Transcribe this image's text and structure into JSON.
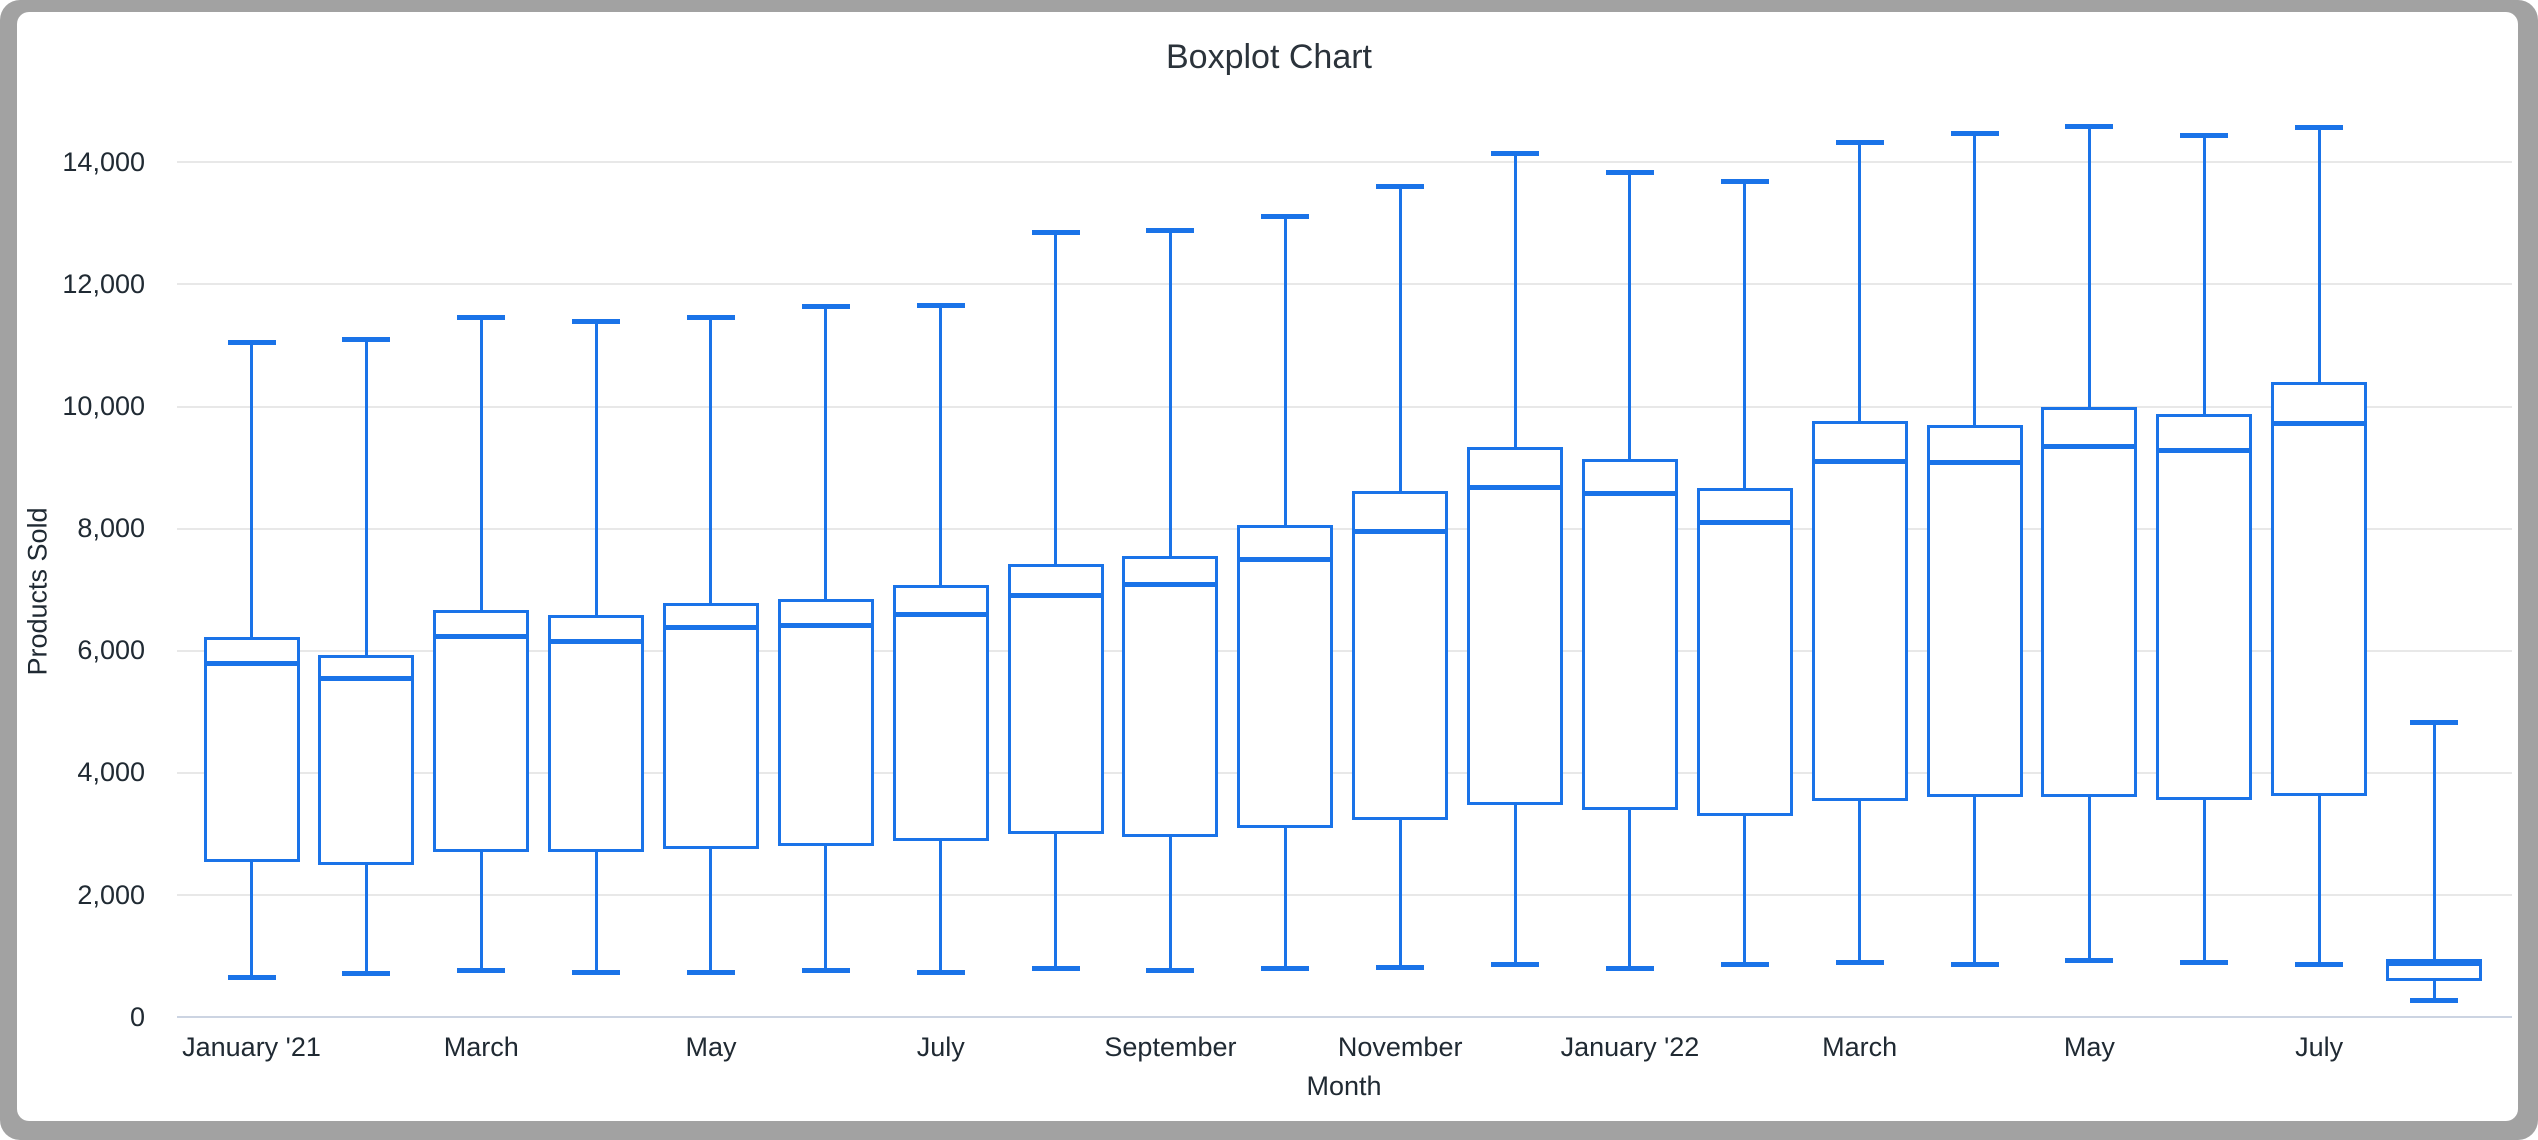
{
  "window": {
    "frame_color": "#a2a2a2",
    "background_color": "#ffffff"
  },
  "colors": {
    "series_blue": "#1a73e8",
    "gridline": "#e8e8e8",
    "baseline": "#ccd4e2",
    "tick_text": "#202a33",
    "title_text": "#2b333b"
  },
  "chart_data": {
    "type": "boxplot",
    "title": "Boxplot Chart",
    "xlabel": "Month",
    "ylabel": "Products Sold",
    "ylim": [
      0,
      14600
    ],
    "grid": true,
    "legend_position": "none",
    "series_color": "#1a73e8",
    "y_ticks": [
      {
        "value": 0,
        "label": "0"
      },
      {
        "value": 2000,
        "label": "2,000"
      },
      {
        "value": 4000,
        "label": "4,000"
      },
      {
        "value": 6000,
        "label": "6,000"
      },
      {
        "value": 8000,
        "label": "8,000"
      },
      {
        "value": 10000,
        "label": "10,000"
      },
      {
        "value": 12000,
        "label": "12,000"
      },
      {
        "value": 14000,
        "label": "14,000"
      }
    ],
    "x_ticks": [
      {
        "box_index": 0,
        "label": "January '21"
      },
      {
        "box_index": 2,
        "label": "March"
      },
      {
        "box_index": 4,
        "label": "May"
      },
      {
        "box_index": 6,
        "label": "July"
      },
      {
        "box_index": 8,
        "label": "September"
      },
      {
        "box_index": 10,
        "label": "November"
      },
      {
        "box_index": 12,
        "label": "January '22"
      },
      {
        "box_index": 14,
        "label": "March"
      },
      {
        "box_index": 16,
        "label": "May"
      },
      {
        "box_index": 18,
        "label": "July"
      }
    ],
    "boxes": [
      {
        "min": 650,
        "q1": 2550,
        "median": 5800,
        "q3": 6220,
        "max": 11050
      },
      {
        "min": 720,
        "q1": 2500,
        "median": 5540,
        "q3": 5930,
        "max": 11100
      },
      {
        "min": 760,
        "q1": 2700,
        "median": 6230,
        "q3": 6670,
        "max": 11460
      },
      {
        "min": 740,
        "q1": 2700,
        "median": 6150,
        "q3": 6580,
        "max": 11390
      },
      {
        "min": 740,
        "q1": 2750,
        "median": 6380,
        "q3": 6780,
        "max": 11460
      },
      {
        "min": 760,
        "q1": 2800,
        "median": 6420,
        "q3": 6850,
        "max": 11640
      },
      {
        "min": 740,
        "q1": 2880,
        "median": 6600,
        "q3": 7080,
        "max": 11660
      },
      {
        "min": 800,
        "q1": 3000,
        "median": 6900,
        "q3": 7430,
        "max": 12850
      },
      {
        "min": 770,
        "q1": 2950,
        "median": 7080,
        "q3": 7560,
        "max": 12890
      },
      {
        "min": 800,
        "q1": 3100,
        "median": 7500,
        "q3": 8060,
        "max": 13110
      },
      {
        "min": 820,
        "q1": 3230,
        "median": 7960,
        "q3": 8620,
        "max": 13610
      },
      {
        "min": 860,
        "q1": 3480,
        "median": 8680,
        "q3": 9340,
        "max": 14150
      },
      {
        "min": 800,
        "q1": 3390,
        "median": 8570,
        "q3": 9140,
        "max": 13830
      },
      {
        "min": 860,
        "q1": 3300,
        "median": 8100,
        "q3": 8660,
        "max": 13680
      },
      {
        "min": 890,
        "q1": 3540,
        "median": 9100,
        "q3": 9770,
        "max": 14330
      },
      {
        "min": 870,
        "q1": 3600,
        "median": 9080,
        "q3": 9690,
        "max": 14470
      },
      {
        "min": 930,
        "q1": 3610,
        "median": 9350,
        "q3": 10000,
        "max": 14580
      },
      {
        "min": 890,
        "q1": 3550,
        "median": 9280,
        "q3": 9880,
        "max": 14430
      },
      {
        "min": 860,
        "q1": 3620,
        "median": 9730,
        "q3": 10400,
        "max": 14570
      },
      {
        "min": 270,
        "q1": 600,
        "median": 880,
        "q3": 950,
        "max": 4820
      }
    ]
  }
}
